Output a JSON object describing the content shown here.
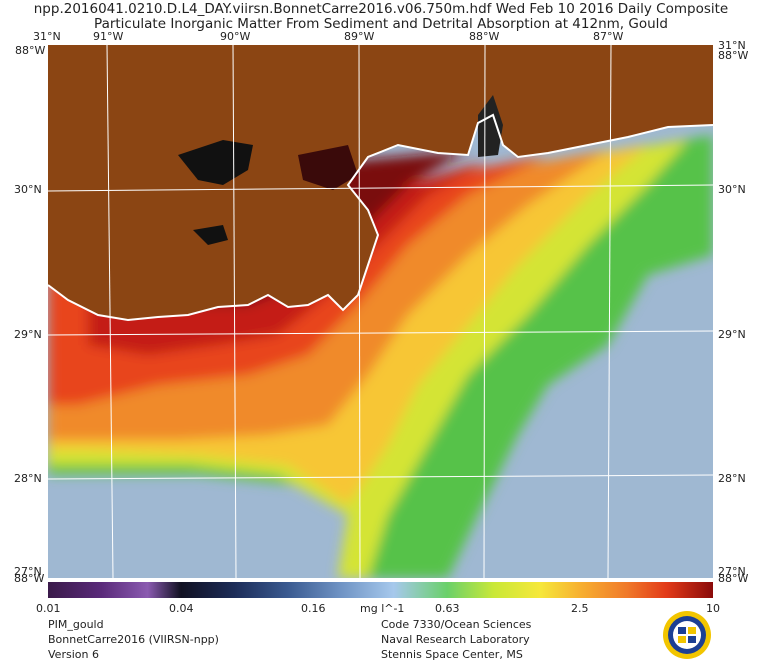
{
  "header": {
    "title_line1": "npp.2016041.0210.D.L4_DAY.viirsn.BonnetCarre2016.v06.750m.hdf    Wed Feb 10 2016 Daily Composite",
    "title_line2": "Particulate Inorganic Matter From Sediment and Detrital Absorption at 412nm, Gould"
  },
  "axes": {
    "lon_top": [
      "91°W",
      "90°W",
      "89°W",
      "88°W",
      "87°W"
    ],
    "lat_left": [
      "31°N",
      "30°N",
      "29°N",
      "28°N",
      "27°N"
    ],
    "lat_right": [
      "31°N",
      "30°N",
      "29°N",
      "28°N",
      "27°N"
    ],
    "corner_top_left": "88°W",
    "corner_top_right": "88°W",
    "corner_bottom_left": "88°W",
    "corner_bottom_right": "88°W"
  },
  "colorbar": {
    "ticks": [
      "0.01",
      "0.04",
      "0.16",
      "0.63",
      "2.5",
      "10"
    ],
    "units": "mg l^-1"
  },
  "footer_left": [
    "PIM_gould",
    "BonnetCarre2016 (VIIRSN-npp)",
    "Version 6"
  ],
  "footer_right": [
    "Code 7330/Ocean Sciences",
    "Naval Research Laboratory",
    "Stennis Space Center, MS"
  ],
  "colors": {
    "land": "#8b4513",
    "offshore_water": "#9fb8d2",
    "grid": "#ffffff"
  },
  "logo": "nrl-seal-icon"
}
